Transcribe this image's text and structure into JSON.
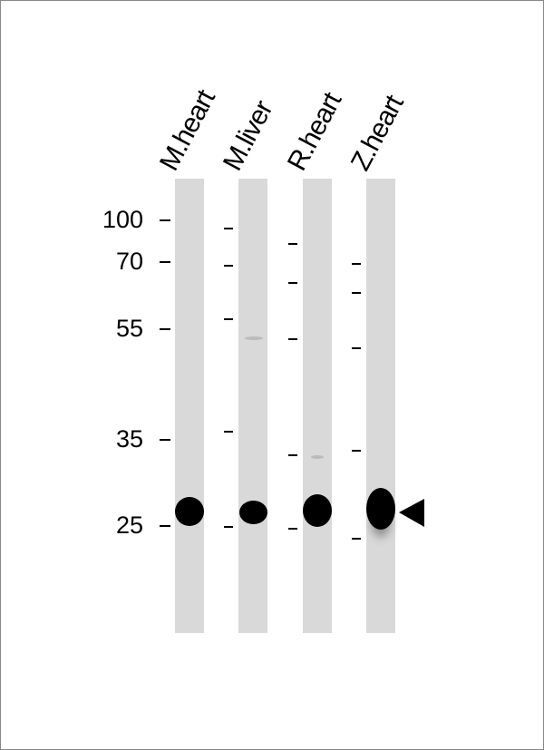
{
  "lanes": [
    {
      "label": "M.heart"
    },
    {
      "label": "M.liver"
    },
    {
      "label": "R.heart"
    },
    {
      "label": "Z.heart"
    }
  ],
  "markers": [
    "100",
    "70",
    "55",
    "35",
    "25"
  ],
  "arrow": "triangle-arrow-left",
  "colors": {
    "lane": "#d9d9d9",
    "band": "#000000"
  }
}
